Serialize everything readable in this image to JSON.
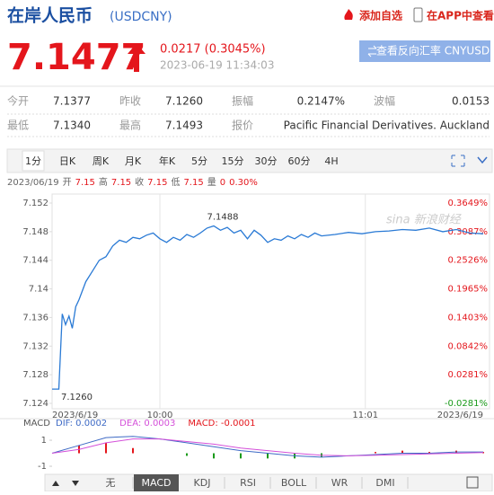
{
  "header": {
    "title": "在岸人民币",
    "code": "(USDCNY)",
    "actions": [
      "添加自选",
      "在APP中查看"
    ]
  },
  "quote": {
    "price": "7.1477",
    "change": "0.0217 (0.3045%)",
    "time": "2023-06-19 11:34:03",
    "button": "查看反向汇率 CNYUSD"
  },
  "stats": {
    "rows": [
      [
        [
          "今开",
          "7.1377"
        ],
        [
          "昨收",
          "7.1260"
        ],
        [
          "振幅",
          "0.2147%"
        ],
        [
          "波幅",
          "0.0153"
        ]
      ],
      [
        [
          "最低",
          "7.1340"
        ],
        [
          "最高",
          "7.1493"
        ],
        [
          "报价",
          "Pacific Financial Derivatives. Auckland"
        ]
      ]
    ]
  },
  "tabs": {
    "items": [
      "1分",
      "日K",
      "周K",
      "月K",
      "年K",
      "5分",
      "15分",
      "30分",
      "60分",
      "4H"
    ],
    "selected": 0
  },
  "info": {
    "date": "2023/06/19",
    "items": [
      [
        "开",
        "7.15"
      ],
      [
        "高",
        "7.15"
      ],
      [
        "收",
        "7.15"
      ],
      [
        "低",
        "7.15"
      ],
      [
        "量",
        "0"
      ]
    ],
    "change": "0.30%"
  },
  "watermark": "sina 新浪财经",
  "chart_data": [
    {
      "type": "line",
      "color": "#2a7ad5",
      "up_color": "#e4161c",
      "down_color": "#1a9a1a",
      "grid": false,
      "xgrid": true,
      "x": [
        0,
        2,
        3,
        4,
        5,
        6,
        7,
        8,
        10,
        12,
        14,
        16,
        18,
        20,
        22,
        24,
        26,
        28,
        30,
        32,
        34,
        36,
        38,
        40,
        42,
        44,
        46,
        48,
        50,
        52,
        54,
        56,
        58,
        60,
        62,
        64,
        66,
        68,
        70,
        72,
        74,
        76,
        78,
        80,
        84,
        88,
        92,
        96,
        100,
        104,
        108,
        112,
        116,
        120,
        124,
        128
      ],
      "values": [
        7.126,
        7.126,
        7.1365,
        7.135,
        7.1362,
        7.1345,
        7.1375,
        7.1385,
        7.141,
        7.1425,
        7.144,
        7.1445,
        7.146,
        7.1468,
        7.1465,
        7.1472,
        7.147,
        7.1475,
        7.1478,
        7.147,
        7.1465,
        7.1472,
        7.1468,
        7.1476,
        7.1472,
        7.1478,
        7.1485,
        7.1488,
        7.1482,
        7.1486,
        7.1478,
        7.1482,
        7.147,
        7.1482,
        7.1475,
        7.1465,
        7.147,
        7.1468,
        7.1474,
        7.147,
        7.1476,
        7.1472,
        7.1478,
        7.1474,
        7.1476,
        7.1479,
        7.1477,
        7.148,
        7.1481,
        7.1483,
        7.1482,
        7.1485,
        7.148,
        7.1483,
        7.1478,
        7.1477
      ],
      "xlim": [
        0,
        128
      ],
      "xticks": [
        {
          "value": 0,
          "label": "2023/6/19"
        },
        {
          "value": 32,
          "label": "10:00"
        },
        {
          "value": 93,
          "label": "11:01"
        },
        {
          "value": 128,
          "label": "2023/6/19"
        }
      ],
      "ylim": [
        7.124,
        7.152
      ],
      "yticks": [
        7.124,
        7.128,
        7.132,
        7.136,
        7.14,
        7.144,
        7.148,
        7.152
      ],
      "y2lim": [
        -0.0281,
        0.3649
      ],
      "y2ticks": [
        {
          "value": -0.0281,
          "label": "-0.0281%"
        },
        {
          "value": 0.0281,
          "label": "0.0281%"
        },
        {
          "value": 0.0842,
          "label": "0.0842%"
        },
        {
          "value": 0.1403,
          "label": "0.1403%"
        },
        {
          "value": 0.1965,
          "label": "0.1965%"
        },
        {
          "value": 0.2526,
          "label": "0.2526%"
        },
        {
          "value": 0.3087,
          "label": "0.3087%"
        },
        {
          "value": 0.3649,
          "label": "0.3649%"
        }
      ],
      "annotations": [
        {
          "x": 48,
          "y": 7.1488,
          "text": "7.1488"
        },
        {
          "x": 0,
          "y": 7.126,
          "text": "7.1260"
        }
      ]
    },
    {
      "type": "macd",
      "title": "MACD",
      "x": [
        0,
        8,
        16,
        24,
        32,
        40,
        48,
        56,
        64,
        72,
        80,
        88,
        96,
        104,
        112,
        120,
        128
      ],
      "xlim": [
        0,
        128
      ],
      "ylim": [
        -1.62,
        2.66
      ],
      "yticks": [
        -1,
        1
      ],
      "series": [
        {
          "name": "DIF: 0.0002",
          "color": "#3e6ac5",
          "values": [
            0,
            0.6,
            1.2,
            1.3,
            1.1,
            0.8,
            0.5,
            0.2,
            0,
            -0.2,
            -0.3,
            -0.2,
            -0.1,
            0,
            0,
            0.1,
            0.1
          ]
        },
        {
          "name": "DEA: 0.0003",
          "color": "#d44fd9",
          "values": [
            0,
            0.3,
            0.8,
            1.1,
            1.1,
            0.9,
            0.7,
            0.4,
            0.2,
            0,
            -0.15,
            -0.2,
            -0.15,
            -0.1,
            -0.05,
            0,
            0.05
          ]
        }
      ],
      "bars": {
        "name": "MACD: -0.0001",
        "up_color": "#e4161c",
        "down_color": "#1a9a1a",
        "values": [
          0,
          0.6,
          0.8,
          0.4,
          0,
          -0.2,
          -0.4,
          -0.4,
          -0.4,
          -0.4,
          -0.3,
          0,
          0.1,
          0.2,
          0.1,
          0.2,
          0.1
        ]
      }
    }
  ],
  "indicators": {
    "items": [
      "无",
      "MACD",
      "KDJ",
      "RSI",
      "BOLL",
      "WR",
      "DMI"
    ],
    "selected": 1
  }
}
